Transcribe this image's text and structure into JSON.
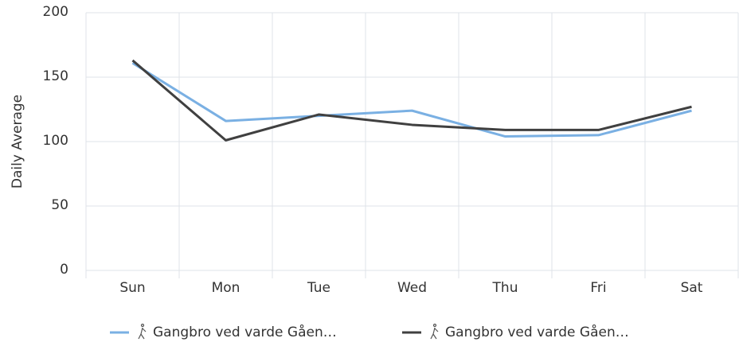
{
  "chart_data": {
    "type": "line",
    "y_label": "Daily Average",
    "categories": [
      "Sun",
      "Mon",
      "Tue",
      "Wed",
      "Thu",
      "Fri",
      "Sat"
    ],
    "series": [
      {
        "name": "Gangbro ved varde Gåen…",
        "color": "#7ab0e3",
        "values": [
          161,
          116,
          120,
          124,
          104,
          105,
          124
        ]
      },
      {
        "name": "Gangbro ved varde Gåen…",
        "color": "#404040",
        "values": [
          163,
          101,
          121,
          113,
          109,
          109,
          127
        ]
      }
    ],
    "ylim": [
      0,
      200
    ],
    "yticks": [
      0,
      50,
      100,
      150,
      200
    ],
    "grid": true,
    "legend": "bottom"
  }
}
